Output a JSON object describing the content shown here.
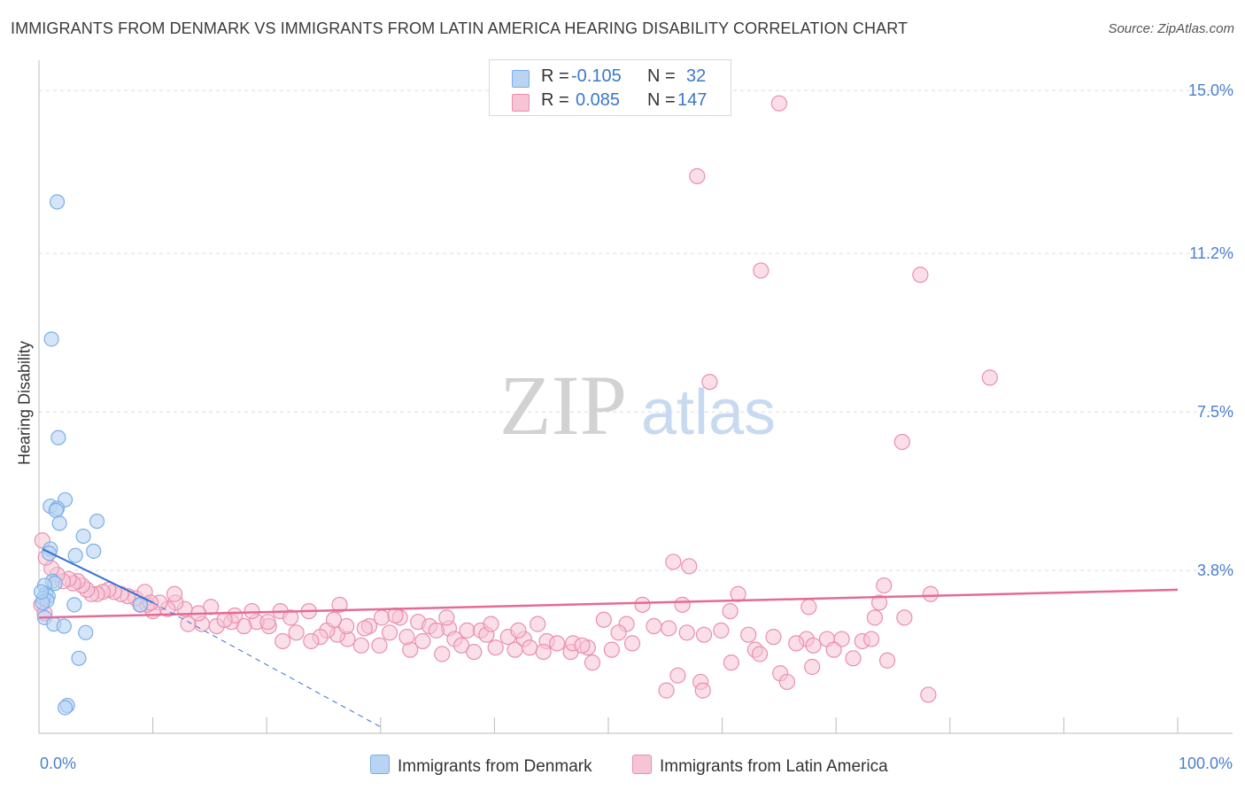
{
  "title": "IMMIGRANTS FROM DENMARK VS IMMIGRANTS FROM LATIN AMERICA HEARING DISABILITY CORRELATION CHART",
  "source": "Source: ZipAtlas.com",
  "watermark": {
    "zip": "ZIP",
    "atlas": "atlas"
  },
  "colors": {
    "blue": "#7aaee8",
    "blue_fill": "#b9d3f3",
    "blue_line": "#3572d4",
    "pink": "#ea8fae",
    "pink_fill": "#f6c4d5",
    "pink_line": "#e56b94",
    "axis_text": "#4a7fd0",
    "grid": "#dddddd"
  },
  "legend": {
    "rows": [
      {
        "r_label": "R =",
        "r_value": "-0.105",
        "n_label": "N =",
        "n_value": "32"
      },
      {
        "r_label": "R =",
        "r_value": "0.085",
        "n_label": "N =",
        "n_value": "147"
      }
    ]
  },
  "bottom_legend": {
    "series1": "Immigrants from Denmark",
    "series2": "Immigrants from Latin America"
  },
  "chart_data": {
    "type": "scatter",
    "title": "IMMIGRANTS FROM DENMARK VS IMMIGRANTS FROM LATIN AMERICA HEARING DISABILITY CORRELATION CHART",
    "xlabel": "",
    "ylabel": "Hearing Disability",
    "xlim": [
      0,
      100
    ],
    "ylim": [
      0,
      15.5
    ],
    "x_tick_labels": [
      "0.0%",
      "100.0%"
    ],
    "y_ticks": [
      3.8,
      7.5,
      11.2,
      15.0
    ],
    "y_tick_labels": [
      "3.8%",
      "7.5%",
      "11.2%",
      "15.0%"
    ],
    "grid": true,
    "series": [
      {
        "name": "Immigrants from Denmark",
        "R": -0.105,
        "N": 32,
        "trend": {
          "x0": 0.3,
          "y0": 4.3,
          "x1": 10,
          "y1": 3.05,
          "dash_to_x": 30,
          "dash_to_y": 0.15
        },
        "points": [
          [
            1.6,
            12.4
          ],
          [
            1.1,
            9.2
          ],
          [
            1.7,
            6.9
          ],
          [
            2.3,
            5.45
          ],
          [
            1.0,
            5.3
          ],
          [
            1.6,
            5.25
          ],
          [
            1.5,
            5.2
          ],
          [
            5.1,
            4.95
          ],
          [
            1.8,
            4.9
          ],
          [
            3.9,
            4.6
          ],
          [
            1.0,
            4.3
          ],
          [
            4.8,
            4.25
          ],
          [
            0.9,
            4.2
          ],
          [
            3.2,
            4.15
          ],
          [
            1.2,
            3.55
          ],
          [
            1.4,
            3.5
          ],
          [
            0.5,
            3.45
          ],
          [
            0.6,
            3.25
          ],
          [
            0.8,
            3.2
          ],
          [
            0.4,
            3.15
          ],
          [
            0.7,
            3.1
          ],
          [
            0.3,
            3.05
          ],
          [
            0.2,
            3.3
          ],
          [
            3.1,
            3.0
          ],
          [
            8.9,
            3.0
          ],
          [
            0.5,
            2.7
          ],
          [
            1.3,
            2.55
          ],
          [
            2.2,
            2.5
          ],
          [
            4.1,
            2.35
          ],
          [
            3.5,
            1.75
          ],
          [
            2.5,
            0.65
          ],
          [
            2.3,
            0.6
          ]
        ]
      },
      {
        "name": "Immigrants from Latin America",
        "R": 0.085,
        "N": 147,
        "trend": {
          "x0": 0,
          "y0": 2.7,
          "x1": 100,
          "y1": 3.35
        },
        "points": [
          [
            65.0,
            14.7
          ],
          [
            57.8,
            13.0
          ],
          [
            63.4,
            10.8
          ],
          [
            77.4,
            10.7
          ],
          [
            58.9,
            8.2
          ],
          [
            83.5,
            8.3
          ],
          [
            75.8,
            6.8
          ],
          [
            57.1,
            3.9
          ],
          [
            55.7,
            4.0
          ],
          [
            74.2,
            3.45
          ],
          [
            61.4,
            3.25
          ],
          [
            78.3,
            3.25
          ],
          [
            73.8,
            3.05
          ],
          [
            67.6,
            2.95
          ],
          [
            53.0,
            3.0
          ],
          [
            56.5,
            3.0
          ],
          [
            60.7,
            2.85
          ],
          [
            73.4,
            2.7
          ],
          [
            76.0,
            2.7
          ],
          [
            49.6,
            2.65
          ],
          [
            51.6,
            2.55
          ],
          [
            54.0,
            2.5
          ],
          [
            55.3,
            2.45
          ],
          [
            59.9,
            2.4
          ],
          [
            50.9,
            2.35
          ],
          [
            56.9,
            2.35
          ],
          [
            58.4,
            2.3
          ],
          [
            62.3,
            2.3
          ],
          [
            64.5,
            2.25
          ],
          [
            67.4,
            2.2
          ],
          [
            69.2,
            2.2
          ],
          [
            70.5,
            2.2
          ],
          [
            72.3,
            2.15
          ],
          [
            73.1,
            2.2
          ],
          [
            66.5,
            2.1
          ],
          [
            52.1,
            2.1
          ],
          [
            48.2,
            2.0
          ],
          [
            68.0,
            2.05
          ],
          [
            62.9,
            1.95
          ],
          [
            69.8,
            1.95
          ],
          [
            50.3,
            1.95
          ],
          [
            46.7,
            1.9
          ],
          [
            63.3,
            1.85
          ],
          [
            71.5,
            1.75
          ],
          [
            74.5,
            1.7
          ],
          [
            48.6,
            1.65
          ],
          [
            60.8,
            1.65
          ],
          [
            67.9,
            1.55
          ],
          [
            65.1,
            1.4
          ],
          [
            56.1,
            1.35
          ],
          [
            58.1,
            1.2
          ],
          [
            65.7,
            1.2
          ],
          [
            55.1,
            1.0
          ],
          [
            58.3,
            1.0
          ],
          [
            78.1,
            0.9
          ],
          [
            31.7,
            2.7
          ],
          [
            33.3,
            2.6
          ],
          [
            34.3,
            2.5
          ],
          [
            36.0,
            2.45
          ],
          [
            37.6,
            2.4
          ],
          [
            38.8,
            2.4
          ],
          [
            39.3,
            2.3
          ],
          [
            41.2,
            2.25
          ],
          [
            42.6,
            2.2
          ],
          [
            44.6,
            2.15
          ],
          [
            45.5,
            2.1
          ],
          [
            46.9,
            2.1
          ],
          [
            47.7,
            2.05
          ],
          [
            40.1,
            2.0
          ],
          [
            43.1,
            2.0
          ],
          [
            36.5,
            2.2
          ],
          [
            33.7,
            2.15
          ],
          [
            37.1,
            2.05
          ],
          [
            41.8,
            1.95
          ],
          [
            44.3,
            1.9
          ],
          [
            38.2,
            1.9
          ],
          [
            35.4,
            1.85
          ],
          [
            32.6,
            1.95
          ],
          [
            29.9,
            2.05
          ],
          [
            28.3,
            2.05
          ],
          [
            27.1,
            2.2
          ],
          [
            26.2,
            2.3
          ],
          [
            25.3,
            2.4
          ],
          [
            24.7,
            2.25
          ],
          [
            23.9,
            2.15
          ],
          [
            22.6,
            2.35
          ],
          [
            21.4,
            2.15
          ],
          [
            20.2,
            2.5
          ],
          [
            29.0,
            2.5
          ],
          [
            30.8,
            2.35
          ],
          [
            32.3,
            2.25
          ],
          [
            34.9,
            2.4
          ],
          [
            39.7,
            2.55
          ],
          [
            43.8,
            2.55
          ],
          [
            42.1,
            2.4
          ],
          [
            30.1,
            2.7
          ],
          [
            31.3,
            2.75
          ],
          [
            35.8,
            2.7
          ],
          [
            28.6,
            2.45
          ],
          [
            27.0,
            2.5
          ],
          [
            19.1,
            2.6
          ],
          [
            18.0,
            2.5
          ],
          [
            16.9,
            2.6
          ],
          [
            15.6,
            2.5
          ],
          [
            14.3,
            2.55
          ],
          [
            13.1,
            2.55
          ],
          [
            23.7,
            2.85
          ],
          [
            25.9,
            2.65
          ],
          [
            26.4,
            3.0
          ],
          [
            21.2,
            2.85
          ],
          [
            22.1,
            2.7
          ],
          [
            18.7,
            2.85
          ],
          [
            17.2,
            2.75
          ],
          [
            20.1,
            2.6
          ],
          [
            16.3,
            2.65
          ],
          [
            15.1,
            2.95
          ],
          [
            14.0,
            2.8
          ],
          [
            12.8,
            2.9
          ],
          [
            12.0,
            3.05
          ],
          [
            11.3,
            2.9
          ],
          [
            10.6,
            3.05
          ],
          [
            10.0,
            2.85
          ],
          [
            9.5,
            3.0
          ],
          [
            8.9,
            3.0
          ],
          [
            8.5,
            3.15
          ],
          [
            7.8,
            3.2
          ],
          [
            7.2,
            3.25
          ],
          [
            6.6,
            3.3
          ],
          [
            6.1,
            3.35
          ],
          [
            5.6,
            3.3
          ],
          [
            5.1,
            3.25
          ],
          [
            4.6,
            3.25
          ],
          [
            4.2,
            3.35
          ],
          [
            3.8,
            3.45
          ],
          [
            3.4,
            3.55
          ],
          [
            3.0,
            3.5
          ],
          [
            2.6,
            3.6
          ],
          [
            2.1,
            3.55
          ],
          [
            1.6,
            3.7
          ],
          [
            1.1,
            3.85
          ],
          [
            0.6,
            4.1
          ],
          [
            0.3,
            4.5
          ],
          [
            0.2,
            3.0
          ],
          [
            0.5,
            2.8
          ],
          [
            9.3,
            3.3
          ],
          [
            11.9,
            3.25
          ],
          [
            9.8,
            3.05
          ]
        ]
      }
    ]
  }
}
